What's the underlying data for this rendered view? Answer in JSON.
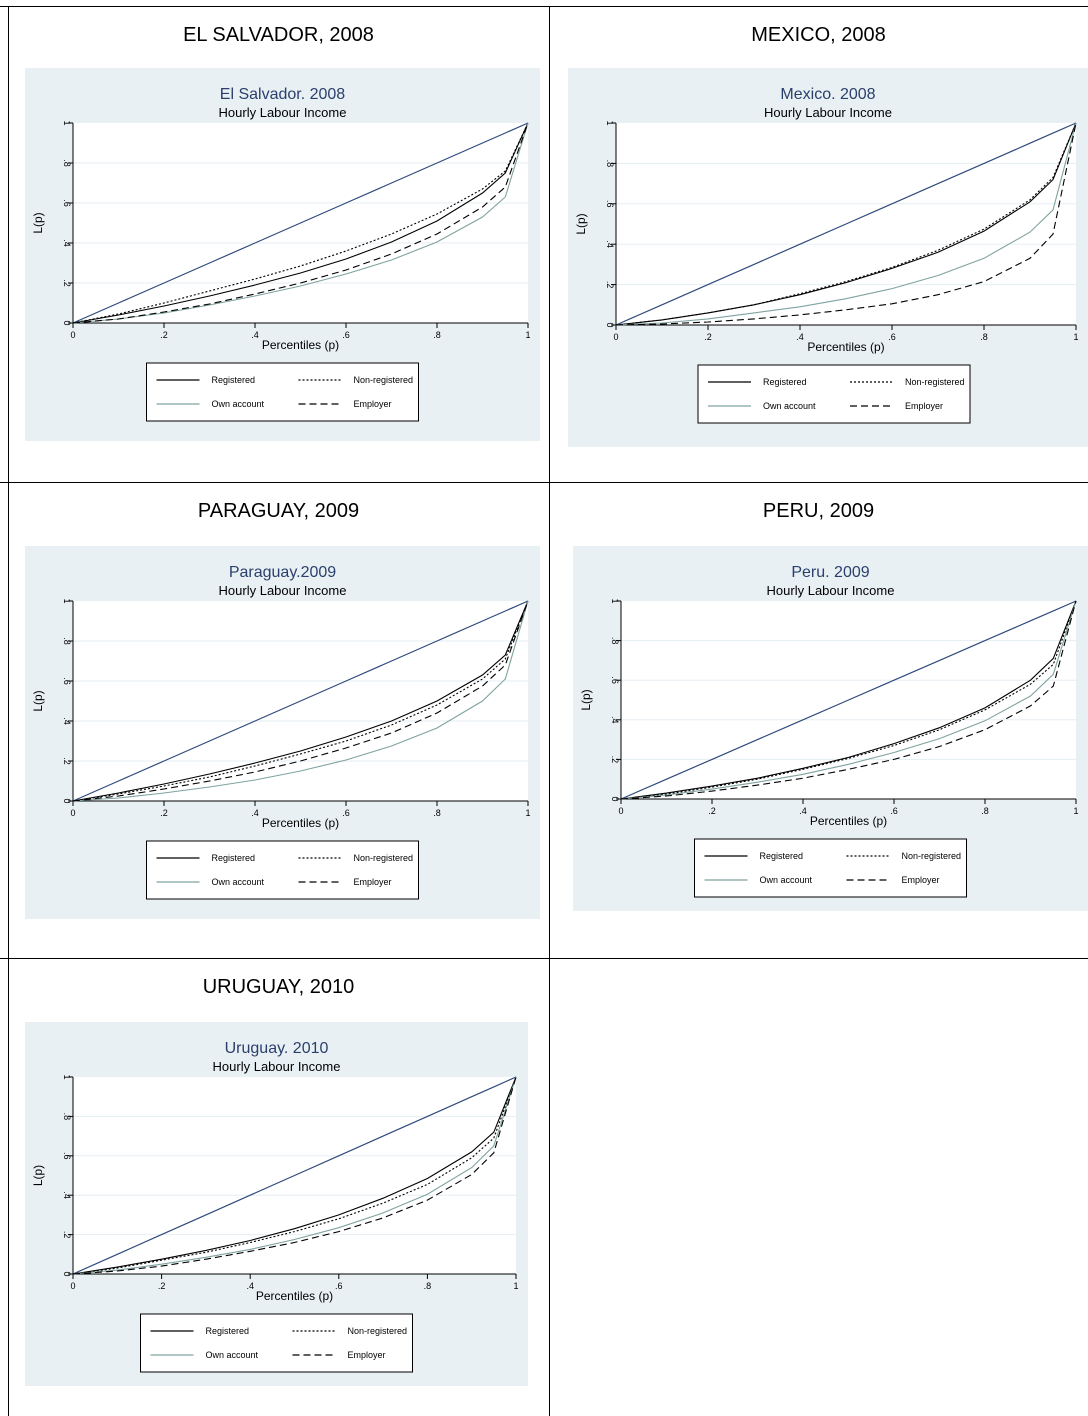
{
  "cells": [
    {
      "heading": "EL SALVADOR, 2008"
    },
    {
      "heading": "MEXICO, 2008"
    },
    {
      "heading": "PARAGUAY, 2009"
    },
    {
      "heading": "PERU, 2009"
    },
    {
      "heading": "URUGUAY, 2010"
    }
  ],
  "chart_data": [
    {
      "type": "line",
      "title": "El Salvador. 2008",
      "subtitle": "Hourly Labour Income",
      "xlabel": "Percentiles (p)",
      "ylabel": "L(p)",
      "xlim": [
        0,
        1
      ],
      "ylim": [
        0,
        1
      ],
      "xticks": [
        "0",
        ".2",
        ".4",
        ".6",
        ".8",
        "1"
      ],
      "yticks": [
        "0",
        ".2",
        ".4",
        ".6",
        ".8",
        "1"
      ],
      "grid": true,
      "legend": "bottom",
      "x": [
        0,
        0.1,
        0.2,
        0.3,
        0.4,
        0.5,
        0.6,
        0.7,
        0.8,
        0.9,
        0.95,
        1
      ],
      "series": [
        {
          "name": "",
          "style": "equality",
          "color": "#2f4b7c",
          "values": [
            0,
            0.1,
            0.2,
            0.3,
            0.4,
            0.5,
            0.6,
            0.7,
            0.8,
            0.9,
            0.95,
            1
          ]
        },
        {
          "name": "Registered",
          "style": "solid",
          "color": "#000000",
          "values": [
            0,
            0.04,
            0.085,
            0.135,
            0.19,
            0.25,
            0.32,
            0.405,
            0.51,
            0.65,
            0.75,
            1
          ]
        },
        {
          "name": "Non-registered",
          "style": "dotted",
          "color": "#000000",
          "values": [
            0,
            0.045,
            0.1,
            0.16,
            0.22,
            0.285,
            0.36,
            0.445,
            0.545,
            0.67,
            0.76,
            1
          ]
        },
        {
          "name": "Own account",
          "style": "solid",
          "color": "#7fa3a0",
          "values": [
            0,
            0.02,
            0.05,
            0.09,
            0.135,
            0.185,
            0.245,
            0.315,
            0.405,
            0.53,
            0.63,
            1
          ]
        },
        {
          "name": "Employer",
          "style": "dashed",
          "color": "#000000",
          "values": [
            0,
            0.02,
            0.055,
            0.095,
            0.145,
            0.2,
            0.265,
            0.345,
            0.445,
            0.58,
            0.68,
            1
          ]
        }
      ]
    },
    {
      "type": "line",
      "title": "Mexico. 2008",
      "subtitle": "Hourly Labour Income",
      "xlabel": "Percentiles (p)",
      "ylabel": "L(p)",
      "xlim": [
        0,
        1
      ],
      "ylim": [
        0,
        1
      ],
      "xticks": [
        "0",
        ".2",
        ".4",
        ".6",
        ".8",
        "1"
      ],
      "yticks": [
        "0",
        ".2",
        ".4",
        ".6",
        ".8",
        "1"
      ],
      "grid": true,
      "legend": "bottom",
      "x": [
        0,
        0.1,
        0.2,
        0.3,
        0.4,
        0.5,
        0.6,
        0.7,
        0.8,
        0.9,
        0.95,
        1
      ],
      "series": [
        {
          "name": "",
          "style": "equality",
          "color": "#2f4b7c",
          "values": [
            0,
            0.1,
            0.2,
            0.3,
            0.4,
            0.5,
            0.6,
            0.7,
            0.8,
            0.9,
            0.95,
            1
          ]
        },
        {
          "name": "Registered",
          "style": "solid",
          "color": "#000000",
          "values": [
            0,
            0.025,
            0.06,
            0.1,
            0.15,
            0.21,
            0.28,
            0.36,
            0.465,
            0.61,
            0.72,
            1
          ]
        },
        {
          "name": "Non-registered",
          "style": "dotted",
          "color": "#000000",
          "values": [
            0,
            0.025,
            0.06,
            0.1,
            0.155,
            0.215,
            0.285,
            0.37,
            0.475,
            0.62,
            0.73,
            1
          ]
        },
        {
          "name": "Own account",
          "style": "solid",
          "color": "#7fa3a0",
          "values": [
            0,
            0.01,
            0.03,
            0.06,
            0.09,
            0.13,
            0.18,
            0.245,
            0.33,
            0.46,
            0.57,
            1
          ]
        },
        {
          "name": "Employer",
          "style": "dashed",
          "color": "#000000",
          "values": [
            0,
            0.005,
            0.015,
            0.03,
            0.05,
            0.075,
            0.105,
            0.15,
            0.215,
            0.33,
            0.45,
            1
          ]
        }
      ]
    },
    {
      "type": "line",
      "title": "Paraguay.2009",
      "subtitle": "Hourly Labour Income",
      "xlabel": "Percentiles (p)",
      "ylabel": "L(p)",
      "xlim": [
        0,
        1
      ],
      "ylim": [
        0,
        1
      ],
      "xticks": [
        "0",
        ".2",
        ".4",
        ".6",
        ".8",
        "1"
      ],
      "yticks": [
        "0",
        ".2",
        ".4",
        ".6",
        ".8",
        "1"
      ],
      "grid": true,
      "legend": "bottom",
      "x": [
        0,
        0.1,
        0.2,
        0.3,
        0.4,
        0.5,
        0.6,
        0.7,
        0.8,
        0.9,
        0.95,
        1
      ],
      "series": [
        {
          "name": "",
          "style": "equality",
          "color": "#2f4b7c",
          "values": [
            0,
            0.1,
            0.2,
            0.3,
            0.4,
            0.5,
            0.6,
            0.7,
            0.8,
            0.9,
            0.95,
            1
          ]
        },
        {
          "name": "Registered",
          "style": "solid",
          "color": "#000000",
          "values": [
            0,
            0.04,
            0.085,
            0.135,
            0.19,
            0.25,
            0.32,
            0.4,
            0.5,
            0.63,
            0.73,
            1
          ]
        },
        {
          "name": "Non-registered",
          "style": "dotted",
          "color": "#000000",
          "values": [
            0,
            0.035,
            0.075,
            0.12,
            0.175,
            0.235,
            0.3,
            0.38,
            0.48,
            0.61,
            0.71,
            1
          ]
        },
        {
          "name": "Own account",
          "style": "solid",
          "color": "#7fa3a0",
          "values": [
            0,
            0.015,
            0.04,
            0.07,
            0.105,
            0.15,
            0.205,
            0.275,
            0.365,
            0.5,
            0.61,
            1
          ]
        },
        {
          "name": "Employer",
          "style": "dashed",
          "color": "#000000",
          "values": [
            0,
            0.025,
            0.06,
            0.1,
            0.145,
            0.2,
            0.265,
            0.34,
            0.44,
            0.575,
            0.68,
            1
          ]
        }
      ]
    },
    {
      "type": "line",
      "title": "Peru. 2009",
      "subtitle": "Hourly Labour Income",
      "xlabel": "Percentiles (p)",
      "ylabel": "L(p)",
      "xlim": [
        0,
        1
      ],
      "ylim": [
        0,
        1
      ],
      "xticks": [
        "0",
        ".2",
        ".4",
        ".6",
        ".8",
        "1"
      ],
      "yticks": [
        "0",
        ".2",
        ".4",
        ".6",
        ".8",
        "1"
      ],
      "grid": true,
      "legend": "bottom",
      "x": [
        0,
        0.1,
        0.2,
        0.3,
        0.4,
        0.5,
        0.6,
        0.7,
        0.8,
        0.9,
        0.95,
        1
      ],
      "series": [
        {
          "name": "",
          "style": "equality",
          "color": "#2f4b7c",
          "values": [
            0,
            0.1,
            0.2,
            0.3,
            0.4,
            0.5,
            0.6,
            0.7,
            0.8,
            0.9,
            0.95,
            1
          ]
        },
        {
          "name": "Registered",
          "style": "solid",
          "color": "#000000",
          "values": [
            0,
            0.03,
            0.065,
            0.105,
            0.155,
            0.21,
            0.28,
            0.36,
            0.46,
            0.6,
            0.71,
            1
          ]
        },
        {
          "name": "Non-registered",
          "style": "dotted",
          "color": "#000000",
          "values": [
            0,
            0.025,
            0.06,
            0.1,
            0.15,
            0.205,
            0.27,
            0.35,
            0.45,
            0.58,
            0.68,
            1
          ]
        },
        {
          "name": "Own account",
          "style": "solid",
          "color": "#7fa3a0",
          "values": [
            0,
            0.02,
            0.05,
            0.085,
            0.125,
            0.175,
            0.235,
            0.305,
            0.395,
            0.52,
            0.63,
            1
          ]
        },
        {
          "name": "Employer",
          "style": "dashed",
          "color": "#000000",
          "values": [
            0,
            0.015,
            0.04,
            0.07,
            0.105,
            0.15,
            0.2,
            0.265,
            0.35,
            0.47,
            0.57,
            1
          ]
        }
      ]
    },
    {
      "type": "line",
      "title": "Uruguay. 2010",
      "subtitle": "Hourly Labour Income",
      "xlabel": "Percentiles (p)",
      "ylabel": "L(p)",
      "xlim": [
        0,
        1
      ],
      "ylim": [
        0,
        1
      ],
      "xticks": [
        "0",
        ".2",
        ".4",
        ".6",
        ".8",
        "1"
      ],
      "yticks": [
        "0",
        ".2",
        ".4",
        ".6",
        ".8",
        "1"
      ],
      "grid": true,
      "legend": "bottom",
      "x": [
        0,
        0.1,
        0.2,
        0.3,
        0.4,
        0.5,
        0.6,
        0.7,
        0.8,
        0.9,
        0.95,
        1
      ],
      "series": [
        {
          "name": "",
          "style": "equality",
          "color": "#2f4b7c",
          "values": [
            0,
            0.1,
            0.2,
            0.3,
            0.4,
            0.5,
            0.6,
            0.7,
            0.8,
            0.9,
            0.95,
            1
          ]
        },
        {
          "name": "Registered",
          "style": "solid",
          "color": "#000000",
          "values": [
            0,
            0.035,
            0.075,
            0.12,
            0.17,
            0.23,
            0.3,
            0.385,
            0.485,
            0.62,
            0.72,
            1
          ]
        },
        {
          "name": "Non-registered",
          "style": "dotted",
          "color": "#000000",
          "values": [
            0,
            0.03,
            0.07,
            0.11,
            0.16,
            0.215,
            0.28,
            0.36,
            0.455,
            0.59,
            0.69,
            1
          ]
        },
        {
          "name": "Own account",
          "style": "solid",
          "color": "#7fa3a0",
          "values": [
            0,
            0.02,
            0.05,
            0.085,
            0.125,
            0.175,
            0.235,
            0.31,
            0.405,
            0.54,
            0.65,
            1
          ]
        },
        {
          "name": "Employer",
          "style": "dashed",
          "color": "#000000",
          "values": [
            0,
            0.015,
            0.04,
            0.075,
            0.115,
            0.16,
            0.215,
            0.285,
            0.375,
            0.505,
            0.615,
            1
          ]
        }
      ]
    }
  ]
}
